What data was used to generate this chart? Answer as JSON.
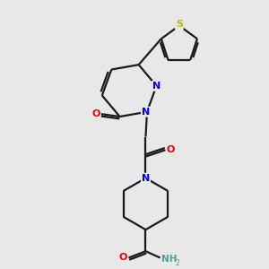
{
  "bg_color": "#e8e8e8",
  "bond_color": "#1a1a1a",
  "N_color": "#0000ee",
  "O_color": "#ee0000",
  "S_color": "#bbbb00",
  "NH_color": "#559999",
  "line_width": 1.6,
  "figsize": [
    3.0,
    3.0
  ],
  "dpi": 100,
  "xlim": [
    0,
    10
  ],
  "ylim": [
    0,
    10
  ]
}
